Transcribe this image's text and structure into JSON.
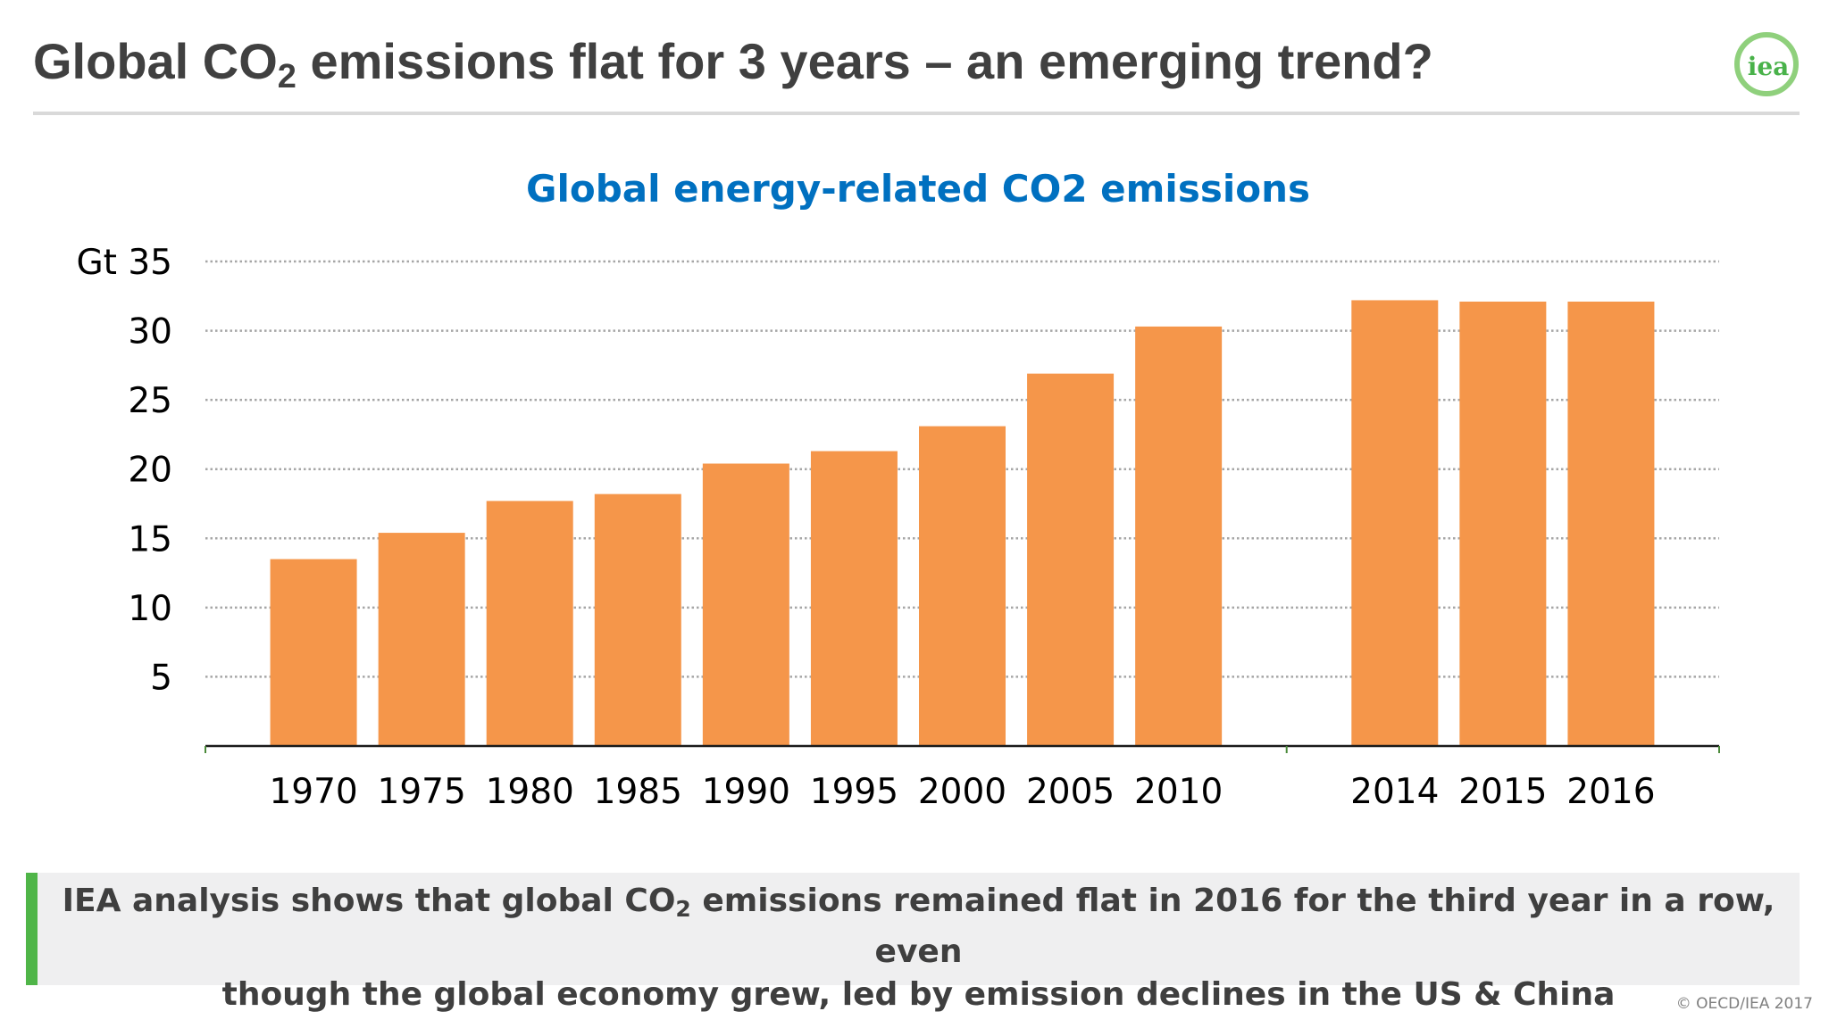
{
  "slide": {
    "title_pre": "Global CO",
    "title_sub": "2",
    "title_post": " emissions flat for 3 years – an emerging trend?",
    "logo_text": "iea",
    "callout": {
      "line1_pre": "IEA analysis shows that global CO",
      "line1_sub": "2",
      "line1_post": " emissions remained flat in 2016 for the third year in a row, even",
      "line2": "though the global economy grew, led by emission declines in the US & China"
    },
    "copyright": "© OECD/IEA 2017",
    "colors": {
      "title": "#404040",
      "accent_green": "#4fb548",
      "bar": "#f5964a",
      "chart_title": "#0070c0"
    }
  },
  "chart_data": {
    "type": "bar",
    "title": "Global energy-related CO2 emissions",
    "ylabel": "Gt",
    "xlabel": "",
    "ylim": [
      0,
      35
    ],
    "yticks": [
      5,
      10,
      15,
      20,
      25,
      30,
      35
    ],
    "ytick_labels": [
      "5",
      "10",
      "15",
      "20",
      "25",
      "30",
      "Gt 35"
    ],
    "grid": true,
    "categories": [
      "1970",
      "1975",
      "1980",
      "1985",
      "1990",
      "1995",
      "2000",
      "2005",
      "2010",
      "2014",
      "2015",
      "2016"
    ],
    "values": [
      13.5,
      15.4,
      17.7,
      18.2,
      20.4,
      21.3,
      23.1,
      26.9,
      30.3,
      32.2,
      32.1,
      32.1
    ]
  }
}
